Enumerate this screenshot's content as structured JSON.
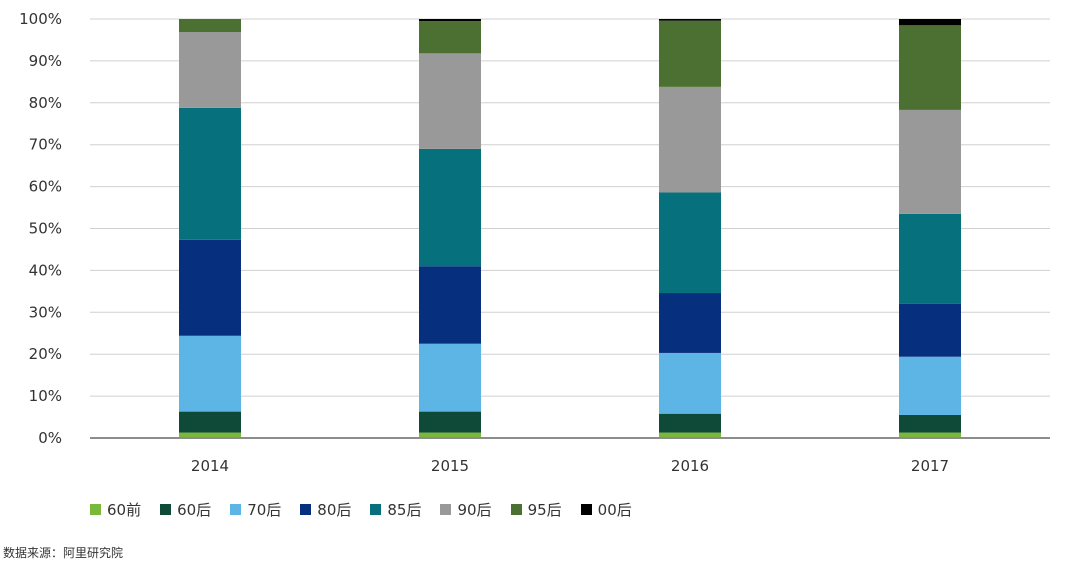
{
  "chart_data": {
    "type": "bar",
    "stacked": true,
    "categories": [
      "2014",
      "2015",
      "2016",
      "2017"
    ],
    "series": [
      {
        "name": "60前",
        "color": "#7ab83c",
        "values": [
          1.3,
          1.3,
          1.3,
          1.3
        ]
      },
      {
        "name": "60后",
        "color": "#0e4a37",
        "values": [
          5.0,
          5.0,
          4.5,
          4.2
        ]
      },
      {
        "name": "70后",
        "color": "#5db5e6",
        "values": [
          18.1,
          16.2,
          14.5,
          13.9
        ]
      },
      {
        "name": "80后",
        "color": "#062f7e",
        "values": [
          22.9,
          18.5,
          14.3,
          12.6
        ]
      },
      {
        "name": "85后",
        "color": "#06707d",
        "values": [
          31.5,
          28.0,
          24.0,
          21.5
        ]
      },
      {
        "name": "90后",
        "color": "#999999",
        "values": [
          18.1,
          22.8,
          25.2,
          24.8
        ]
      },
      {
        "name": "95后",
        "color": "#4b7031",
        "values": [
          3.1,
          7.7,
          15.8,
          20.2
        ]
      },
      {
        "name": "00后",
        "color": "#000000",
        "values": [
          0.0,
          0.5,
          0.4,
          1.5
        ]
      }
    ],
    "yticks": [
      "0%",
      "10%",
      "20%",
      "30%",
      "40%",
      "50%",
      "60%",
      "70%",
      "80%",
      "90%",
      "100%"
    ],
    "ylim": [
      0,
      100
    ],
    "grid": true,
    "legend_position": "bottom-left"
  },
  "source_note": "数据来源：阿里研究院"
}
